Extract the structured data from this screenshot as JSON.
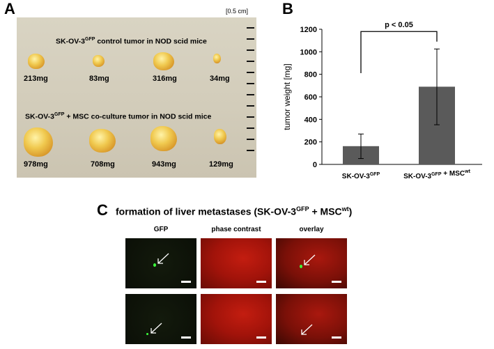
{
  "panel_a": {
    "letter": "A",
    "scale_label": "[0.5 cm]",
    "control_title": "SK-OV-3",
    "control_title_sup": "GFP",
    "control_title_rest": " control tumor in NOD scid mice",
    "control_masses": [
      "213mg",
      "83mg",
      "316mg",
      "34mg"
    ],
    "coculture_title": "SK-OV-3",
    "coculture_title_sup": "GFP",
    "coculture_title_rest": " + MSC co-culture tumor in NOD scid mice",
    "coculture_masses": [
      "978mg",
      "708mg",
      "943mg",
      "129mg"
    ]
  },
  "panel_b": {
    "letter": "B",
    "significance": "p < 0.05"
  },
  "chart_data": {
    "type": "bar",
    "ylabel": "tumor weight [mg]",
    "ylim": [
      0,
      1200
    ],
    "yticks": [
      "0",
      "200",
      "400",
      "600",
      "800",
      "1000",
      "1200"
    ],
    "categories": [
      {
        "main": "SK-OV-3",
        "sup": "GFP",
        "rest": "",
        "sup2": ""
      },
      {
        "main": "SK-OV-3",
        "sup": "GFP",
        "rest": " + MSC",
        "sup2": "wt"
      }
    ],
    "values": [
      162,
      690
    ],
    "errors_upper": [
      270,
      1025
    ],
    "errors_lower": [
      52,
      352
    ],
    "bar_color": "#5a5a5a"
  },
  "panel_c": {
    "letter": "C",
    "title": "formation  of liver metastases (SK-OV-3",
    "title_sup": "GFP",
    "title_mid": " + MSC",
    "title_sup2": "wt",
    "title_end": ")",
    "columns": [
      "GFP",
      "phase contrast",
      "overlay"
    ]
  }
}
